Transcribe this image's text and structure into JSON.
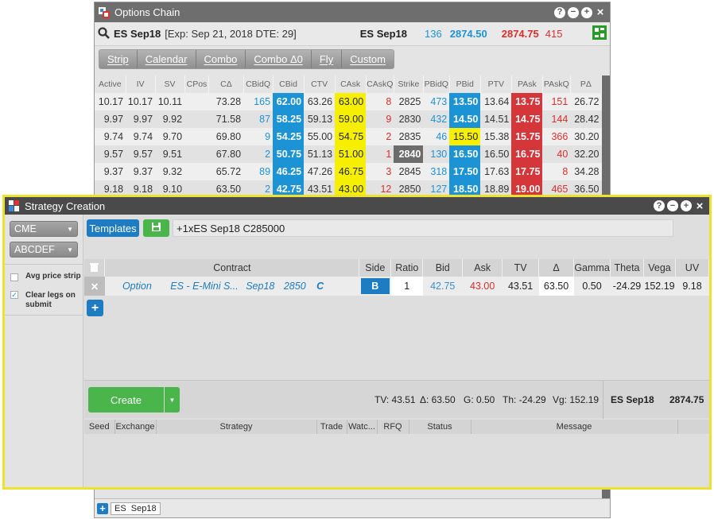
{
  "options_chain": {
    "title": "Options Chain",
    "window_buttons": [
      "?",
      "−",
      "+",
      "×"
    ],
    "header": {
      "symbol": "ES Sep18",
      "expiry": "[Exp: Sep 21, 2018 DTE: 29]",
      "underlying": "ES Sep18",
      "bid_qty": "136",
      "bid": "2874.50",
      "ask": "2874.75",
      "ask_qty": "415"
    },
    "modes": [
      "Strip",
      "Calendar",
      "Combo",
      "Combo Δ0",
      "Fly",
      "Custom"
    ],
    "columns": [
      "Active",
      "IV",
      "SV",
      "CPos",
      "CΔ",
      "CBidQ",
      "CBid",
      "CTV",
      "CAsk",
      "CAskQ",
      "Strike",
      "PBidQ",
      "PBid",
      "PTV",
      "PAsk",
      "PAskQ",
      "PΔ"
    ],
    "rows": [
      [
        "10.17",
        "10.17",
        "10.11",
        "",
        "73.28",
        "165",
        "62.00",
        "63.26",
        "63.00",
        "8",
        "2825",
        "473",
        "13.50",
        "13.64",
        "13.75",
        "151",
        "26.72"
      ],
      [
        "9.97",
        "9.97",
        "9.92",
        "",
        "71.58",
        "87",
        "58.25",
        "59.13",
        "59.00",
        "9",
        "2830",
        "432",
        "14.50",
        "14.51",
        "14.75",
        "144",
        "28.42"
      ],
      [
        "9.74",
        "9.74",
        "9.70",
        "",
        "69.80",
        "9",
        "54.25",
        "55.00",
        "54.75",
        "2",
        "2835",
        "46",
        "15.50",
        "15.38",
        "15.75",
        "366",
        "30.20"
      ],
      [
        "9.57",
        "9.57",
        "9.51",
        "",
        "67.80",
        "2",
        "50.75",
        "51.13",
        "51.00",
        "1",
        "2840",
        "130",
        "16.50",
        "16.50",
        "16.75",
        "40",
        "32.20"
      ],
      [
        "9.37",
        "9.37",
        "9.32",
        "",
        "65.72",
        "89",
        "46.25",
        "47.26",
        "46.75",
        "3",
        "2845",
        "318",
        "17.50",
        "17.63",
        "17.75",
        "8",
        "34.28"
      ],
      [
        "9.18",
        "9.18",
        "9.10",
        "",
        "63.50",
        "2",
        "42.75",
        "43.51",
        "43.00",
        "12",
        "2850",
        "127",
        "18.50",
        "18.89",
        "19.00",
        "465",
        "36.50"
      ]
    ],
    "footer_tab": "ES  Sep18"
  },
  "strategy": {
    "title": "Strategy Creation",
    "window_buttons": [
      "?",
      "−",
      "+",
      "×"
    ],
    "exchange": "CME",
    "account": "ABCDEF",
    "avg_price_strip": "Avg price strip",
    "clear_legs": "Clear legs on submit",
    "templates_label": "Templates",
    "strategy_text": "+1xES Sep18 C285000",
    "leg_columns": [
      "Contract",
      "Side",
      "Ratio",
      "Bid",
      "Ask",
      "TV",
      "Δ",
      "Gamma",
      "Theta",
      "Vega",
      "UV"
    ],
    "leg": {
      "type": "Option",
      "name": "ES - E-Mini S...",
      "expiry": "Sep18",
      "strike": "2850",
      "cp": "C",
      "side": "B",
      "ratio": "1",
      "bid": "42.75",
      "ask": "43.00",
      "tv": "43.51",
      "delta": "63.50",
      "gamma": "0.50",
      "theta": "-24.29",
      "vega": "152.19",
      "uv": "9.18"
    },
    "create_label": "Create",
    "summary": {
      "tv": "TV: 43.51",
      "delta": "Δ: 63.50",
      "gamma": "G: 0.50",
      "theta": "Th: -24.29",
      "vega": "Vg: 152.19",
      "underlying": "ES Sep18",
      "price": "2874.75"
    },
    "order_columns": [
      "Seed",
      "Exchange",
      "Strategy",
      "Trade",
      "Watc...",
      "RFQ",
      "Status",
      "Message"
    ]
  }
}
